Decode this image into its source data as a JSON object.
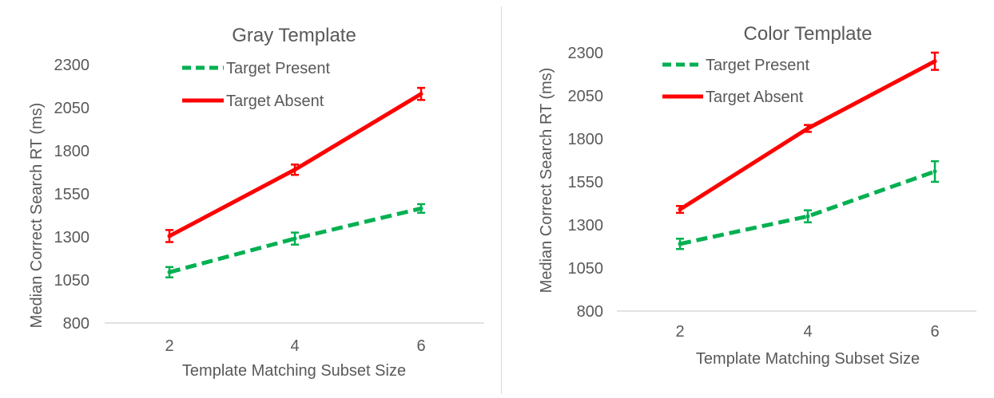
{
  "chart_data": [
    {
      "type": "line",
      "title": "Gray Template",
      "xlabel": "Template Matching Subset Size",
      "ylabel": "Median Correct Search RT (ms)",
      "categories": [
        "2",
        "4",
        "6"
      ],
      "yticks": [
        800,
        1050,
        1300,
        1550,
        1800,
        2050,
        2300
      ],
      "ylim": [
        800,
        2300
      ],
      "grid": false,
      "legend": "top-center",
      "series": [
        {
          "name": "Target Present",
          "values": [
            1095,
            1290,
            1465
          ],
          "errors": [
            30,
            35,
            25
          ],
          "color": "#00b050",
          "dash": true
        },
        {
          "name": "Target Absent",
          "values": [
            1305,
            1690,
            2130
          ],
          "errors": [
            35,
            30,
            35
          ],
          "color": "#ff0000",
          "dash": false
        }
      ]
    },
    {
      "type": "line",
      "title": "Color Template",
      "xlabel": "Template Matching Subset Size",
      "ylabel": "Median Correct Search RT (ms)",
      "categories": [
        "2",
        "4",
        "6"
      ],
      "yticks": [
        800,
        1050,
        1300,
        1550,
        1800,
        2050,
        2300
      ],
      "ylim": [
        800,
        2300
      ],
      "grid": false,
      "legend": "top-center",
      "series": [
        {
          "name": "Target Present",
          "values": [
            1190,
            1350,
            1610
          ],
          "errors": [
            30,
            35,
            60
          ],
          "color": "#00b050",
          "dash": true
        },
        {
          "name": "Target Absent",
          "values": [
            1390,
            1860,
            2250
          ],
          "errors": [
            20,
            20,
            50
          ],
          "color": "#ff0000",
          "dash": false
        }
      ]
    }
  ]
}
